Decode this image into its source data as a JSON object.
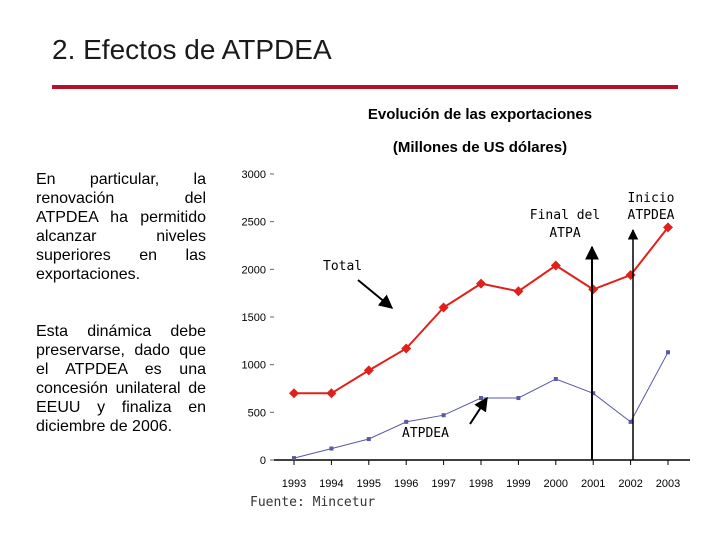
{
  "slide": {
    "title": "2. Efectos de ATPDEA",
    "paragraph1": "En particular, la renovación del ATPDEA ha permitido alcanzar niveles superiores en las exportaciones.",
    "paragraph2": "Esta dinámica debe preservarse, dado que el ATPDEA es una concesión unilateral de EEUU y finaliza en diciembre de 2006.",
    "source": "Fuente: Mincetur"
  },
  "colors": {
    "accent": "#b5122a",
    "total_series": "#e0201b",
    "atpdea_series": "#5858a8"
  },
  "chart_data": {
    "type": "line",
    "title": "Evolución de las exportaciones",
    "subtitle": "(Millones de US dólares)",
    "xlabel": "",
    "ylabel": "",
    "ylim": [
      0,
      3000
    ],
    "yticks": [
      "0",
      "500",
      "1000",
      "1500",
      "2000",
      "2500",
      "3000"
    ],
    "categories": [
      "1993",
      "1994",
      "1995",
      "1996",
      "1997",
      "1998",
      "1999",
      "2000",
      "2001",
      "2002",
      "2003"
    ],
    "series": [
      {
        "name": "Total",
        "values": [
          700,
          700,
          940,
          1170,
          1600,
          1850,
          1770,
          2040,
          1790,
          1940,
          2440
        ]
      },
      {
        "name": "ATPDEA",
        "values": [
          20,
          120,
          220,
          400,
          470,
          650,
          650,
          850,
          700,
          400,
          1130
        ]
      }
    ],
    "annotations": {
      "total": "Total",
      "atpdea": "ATPDEA",
      "final_atpa_line1": "Final del",
      "final_atpa_line2": "ATPA",
      "inicio_line1": "Inicio",
      "inicio_line2": "ATPDEA"
    }
  }
}
